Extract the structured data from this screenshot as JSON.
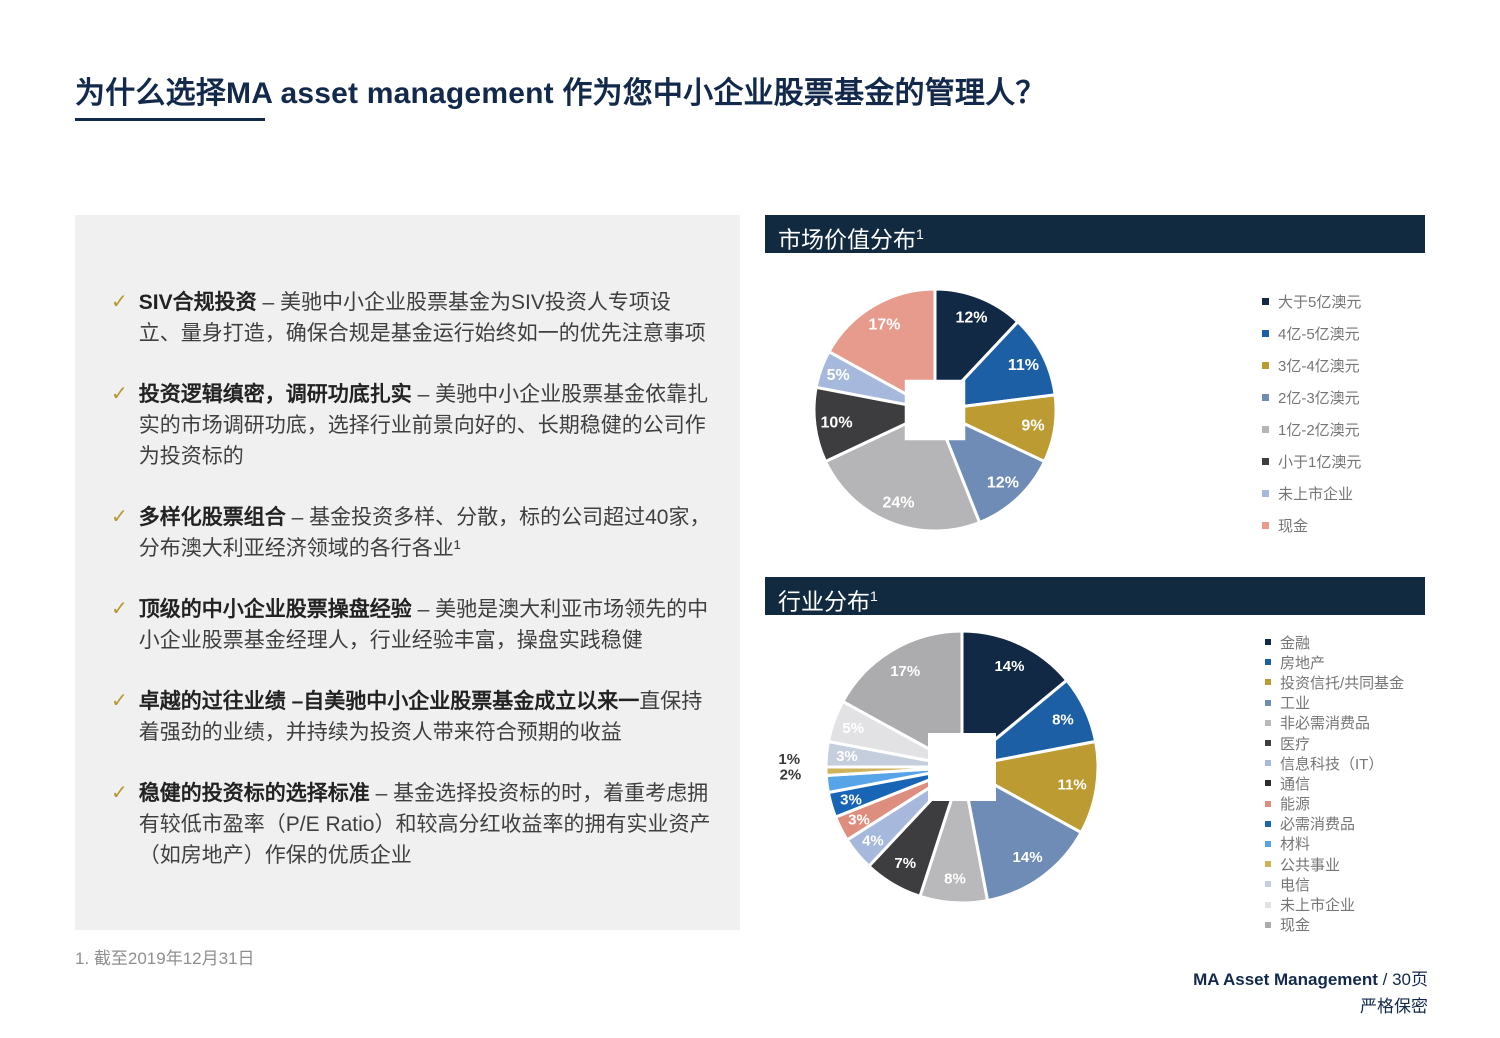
{
  "title": "为什么选择MA asset management 作为您中小企业股票基金的管理人？",
  "bullets": [
    {
      "bold": "SIV合规投资",
      "rest": " – 美驰中小企业股票基金为SIV投资人专项设立、量身打造，确保合规是基金运行始终如一的优先注意事项"
    },
    {
      "bold": "投资逻辑缜密，调研功底扎实",
      "rest": " – 美驰中小企业股票基金依靠扎实的市场调研功底，选择行业前景向好的、长期稳健的公司作为投资标的"
    },
    {
      "bold": "多样化股票组合",
      "rest": " – 基金投资多样、分散，标的公司超过40家，分布澳大利亚经济领域的各行各业¹"
    },
    {
      "bold": "顶级的中小企业股票操盘经验",
      "rest": " – 美驰是澳大利亚市场领先的中小企业股票基金经理人，行业经验丰富，操盘实践稳健"
    },
    {
      "bold": "卓越的过往业绩 –自美驰中小企业股票基金成立以来一",
      "rest": "直保持着强劲的业绩，并持续为投资人带来符合预期的收益"
    },
    {
      "bold": "稳健的投资标的选择标准",
      "rest": " – 基金选择投资标的时，着重考虑拥有较低市盈率（P/E Ratio）和较高分红收益率的拥有实业资产（如房地产）作保的优质企业"
    }
  ],
  "chart_data": [
    {
      "type": "pie",
      "title": "市场价值分布",
      "title_sup": "1",
      "legend_position": "right",
      "start_angle_deg": 0,
      "labels": [
        "大于5亿澳元",
        "4亿-5亿澳元",
        "3亿-4亿澳元",
        "2亿-3亿澳元",
        "1亿-2亿澳元",
        "小于1亿澳元",
        "未上市企业",
        "现金"
      ],
      "values": [
        12,
        11,
        9,
        12,
        24,
        10,
        5,
        17
      ],
      "colors": [
        "#112945",
        "#1D5FA5",
        "#BD9B33",
        "#6E8CB5",
        "#B5B5B7",
        "#3D3D3F",
        "#A6B8DC",
        "#E69B8C"
      ],
      "label_format": "percent",
      "center_hole": "white-square"
    },
    {
      "type": "pie",
      "title": "行业分布",
      "title_sup": "1",
      "legend_position": "right",
      "start_angle_deg": 0,
      "labels": [
        "金融",
        "房地产",
        "投资信托/共同基金",
        "工业",
        "非必需消费品",
        "医疗",
        "信息科技（IT）",
        "通信",
        "能源",
        "必需消费品",
        "材料",
        "公共事业",
        "电信",
        "未上市企业",
        "现金"
      ],
      "values": [
        14,
        8,
        11,
        14,
        8,
        7,
        4,
        0,
        3,
        3,
        2,
        1,
        3,
        5,
        17
      ],
      "colors": [
        "#112945",
        "#1D5FA5",
        "#BD9B33",
        "#6E8CB5",
        "#B9B9BB",
        "#3D3D3F",
        "#A6B8DC",
        "#2B2B2D",
        "#DE8E7E",
        "#1765B4",
        "#58A4E8",
        "#CFB35C",
        "#C5CEDC",
        "#E2E2E4",
        "#ACACAE"
      ],
      "label_format": "percent",
      "center_hole": "white-square"
    }
  ],
  "footnote": "1. 截至2019年12月31日",
  "footer": {
    "brand": "MA Asset Management",
    "page_suffix": " / 30页",
    "confidential": "严格保密"
  },
  "colors": {
    "accent_navy": "#13294B",
    "header_bar": "#122A40",
    "panel_bg": "#F0F0F1",
    "check_gold": "#B8962E"
  }
}
